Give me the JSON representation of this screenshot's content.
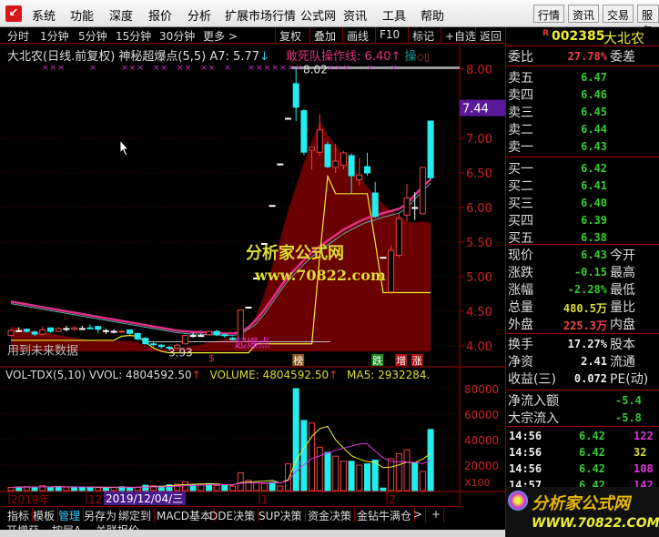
{
  "menu": {
    "items": [
      "系统",
      "功能",
      "深度",
      "报价",
      "分析",
      "扩展市场行情",
      "公式网",
      "资讯",
      "工具",
      "帮助"
    ],
    "buttons": [
      "行情",
      "资讯",
      "交易",
      "服务"
    ]
  },
  "toolbar": {
    "periods": [
      "分时",
      "1分钟",
      "5分钟",
      "15分钟",
      "30分钟",
      "更多 >"
    ],
    "buttons": [
      "复权",
      "叠加",
      "画线",
      "F10",
      "标记",
      "+自选",
      "返回"
    ]
  },
  "chart_title": {
    "name": "大北农(日线.前复权) 神秘超爆点(5,5) A7: 5.77",
    "a7_arrow": "↓",
    "line2": "敢死队操作线: 6.40",
    "line2_arrow": "↑",
    "cao": "操"
  },
  "chart_data": [
    {
      "type": "candlestick",
      "title": "大北农(日线.前复权)",
      "yaxis_ticks": [
        "8.00",
        "7.00",
        "6.50",
        "6.00",
        "5.50",
        "5.00",
        "4.50",
        "4.00"
      ],
      "ylim": [
        3.8,
        8.1
      ],
      "highlight_price": "7.44",
      "high_label": "8.02",
      "low_label": "3.93",
      "candles": [
        [
          4.15,
          4.22,
          4.24,
          4.14
        ],
        [
          4.22,
          4.22,
          4.27,
          4.2
        ],
        [
          4.24,
          4.21,
          4.25,
          4.19
        ],
        [
          4.2,
          4.17,
          4.22,
          4.14
        ],
        [
          4.17,
          4.23,
          4.28,
          4.15
        ],
        [
          4.26,
          4.21,
          4.27,
          4.19
        ],
        [
          4.21,
          4.25,
          4.27,
          4.2
        ],
        [
          4.25,
          4.25,
          4.29,
          4.21
        ],
        [
          4.24,
          4.26,
          4.28,
          4.22
        ],
        [
          4.25,
          4.25,
          4.29,
          4.23
        ],
        [
          4.26,
          4.25,
          4.31,
          4.24
        ],
        [
          4.28,
          4.24,
          4.29,
          4.18
        ],
        [
          4.22,
          4.22,
          4.25,
          4.17
        ],
        [
          4.21,
          4.21,
          4.24,
          4.18
        ],
        [
          4.2,
          4.21,
          4.23,
          4.19
        ],
        [
          4.23,
          4.18,
          4.24,
          4.16
        ],
        [
          4.18,
          4.1,
          4.19,
          4.08
        ],
        [
          4.11,
          4.03,
          4.13,
          4.02
        ],
        [
          4.03,
          4.02,
          4.06,
          3.99
        ],
        [
          4.01,
          3.99,
          4.03,
          3.96
        ],
        [
          3.98,
          3.97,
          4.0,
          3.93
        ],
        [
          3.97,
          4.01,
          4.03,
          3.95
        ],
        [
          4.03,
          4.15,
          4.16,
          4.02
        ],
        [
          4.15,
          4.15,
          4.19,
          4.12
        ],
        [
          4.15,
          4.15,
          4.18,
          4.13
        ],
        [
          4.16,
          4.21,
          4.22,
          4.15
        ],
        [
          4.21,
          4.16,
          4.23,
          4.14
        ],
        [
          4.16,
          4.15,
          4.18,
          4.12
        ],
        [
          4.11,
          4.09,
          4.13,
          4.08
        ],
        [
          4.06,
          4.52,
          4.52,
          4.05
        ],
        [
          4.56,
          4.56,
          4.56,
          4.56
        ],
        [
          4.98,
          4.98,
          4.98,
          4.98
        ],
        [
          5.48,
          5.48,
          5.48,
          5.48
        ],
        [
          6.03,
          6.03,
          6.03,
          6.03
        ],
        [
          6.63,
          6.63,
          6.63,
          6.63
        ],
        [
          7.29,
          7.29,
          7.29,
          7.29
        ],
        [
          7.79,
          7.45,
          8.02,
          7.25
        ],
        [
          7.4,
          6.8,
          7.42,
          6.76
        ],
        [
          6.83,
          6.87,
          6.87,
          6.55
        ],
        [
          6.8,
          7.12,
          7.35,
          6.75
        ],
        [
          6.91,
          6.59,
          6.95,
          6.57
        ],
        [
          6.58,
          6.67,
          6.92,
          6.5
        ],
        [
          6.61,
          6.79,
          6.82,
          6.55
        ],
        [
          6.75,
          6.46,
          6.78,
          6.2
        ],
        [
          6.4,
          6.47,
          6.72,
          6.32
        ],
        [
          6.59,
          6.5,
          6.79,
          6.46
        ],
        [
          6.21,
          5.87,
          6.37,
          5.85
        ],
        [
          5.28,
          5.28,
          5.28,
          5.28
        ],
        [
          4.78,
          5.38,
          5.45,
          4.75
        ],
        [
          5.31,
          5.84,
          5.92,
          5.28
        ],
        [
          5.89,
          6.14,
          6.34,
          5.8
        ],
        [
          6.0,
          6.0,
          6.22,
          5.82
        ],
        [
          5.91,
          6.58,
          6.58,
          5.9
        ],
        [
          7.25,
          6.43,
          7.25,
          6.4
        ]
      ],
      "ma": [
        4.64,
        4.62,
        4.6,
        4.58,
        4.56,
        4.54,
        4.52,
        4.5,
        4.48,
        4.46,
        4.44,
        4.42,
        4.4,
        4.38,
        4.36,
        4.34,
        4.32,
        4.3,
        4.28,
        4.26,
        4.24,
        4.22,
        4.21,
        4.2,
        4.2,
        4.19,
        4.19,
        4.18,
        4.18,
        4.2,
        4.27,
        4.38,
        4.52,
        4.68,
        4.85,
        5.0,
        5.12,
        5.24,
        5.35,
        5.44,
        5.52,
        5.6,
        5.68,
        5.74,
        5.8,
        5.85,
        5.88,
        5.92,
        5.95,
        5.98,
        6.05,
        6.18,
        6.3,
        6.41
      ],
      "signal_line": [
        4.08,
        4.08,
        4.08,
        4.08,
        4.08,
        4.08,
        4.08,
        4.08,
        4.08,
        4.08,
        4.08,
        4.08,
        4.08,
        4.08,
        4.14,
        4.15,
        4.14,
        4.05,
        3.97,
        3.92,
        3.9,
        3.9,
        3.9,
        3.9,
        3.9,
        3.9,
        3.9,
        3.9,
        3.9,
        3.9,
        3.9,
        4.03,
        4.03,
        4.03,
        4.03,
        4.03,
        4.03,
        4.03,
        4.03,
        5.3,
        6.45,
        6.2,
        6.2,
        6.2,
        6.2,
        6.2,
        5.5,
        4.77,
        4.77,
        4.77,
        4.77,
        4.77,
        4.77,
        4.77
      ],
      "band_top": [
        4.28,
        4.26,
        4.24,
        4.22,
        4.2,
        4.18,
        4.16,
        4.14,
        4.12,
        4.1,
        4.08,
        4.07,
        4.07,
        4.07,
        4.07,
        4.07,
        4.05,
        4.0,
        3.97,
        3.95,
        3.95,
        3.96,
        3.98,
        4.0,
        4.02,
        4.05,
        4.08,
        4.1,
        4.12,
        4.15,
        4.25,
        4.45,
        4.75,
        5.15,
        5.55,
        5.95,
        6.3,
        6.65,
        6.95,
        7.25,
        7.05,
        6.9,
        6.75,
        6.6,
        6.45,
        6.3,
        6.18,
        6.05,
        5.95,
        5.88,
        5.8,
        5.78,
        5.8,
        5.78
      ],
      "markers": [
        {
          "index": 36,
          "label": "榜",
          "color": "#8a5a20"
        },
        {
          "index": 46,
          "label": "跌",
          "color": "#1a8a1a"
        },
        {
          "index": 49,
          "label": "增",
          "color": "#b01010"
        },
        {
          "index": 51,
          "label": "涨",
          "color": "#b01010"
        }
      ],
      "annotations": [
        "起爆点",
        "用到未来数据",
        "$"
      ]
    },
    {
      "type": "bar",
      "title": "VOL-TDX(5,10)",
      "labels": {
        "vvol": "VVOL: 4804592.50",
        "volume": "VOLUME: 4804592.50",
        "ma5": "MA5: 2932284."
      },
      "yaxis_ticks": [
        "80000",
        "60000",
        "40000",
        "20000"
      ],
      "unit": "X100",
      "ylim": [
        0,
        90000
      ],
      "volumes": [
        2500,
        2800,
        3000,
        2600,
        3800,
        2500,
        3200,
        2700,
        2600,
        2800,
        2600,
        2400,
        2300,
        2500,
        3000,
        2400,
        2600,
        4200,
        3800,
        3500,
        4500,
        5000,
        7000,
        4800,
        4500,
        5500,
        4000,
        4200,
        3500,
        14000,
        8000,
        6000,
        5500,
        6500,
        3500,
        21000,
        80000,
        55000,
        53000,
        34000,
        30000,
        27000,
        23000,
        23000,
        20000,
        21000,
        24000,
        2000,
        25000,
        29000,
        32000,
        22000,
        15000,
        48000
      ],
      "up": [
        1,
        0,
        1,
        0,
        1,
        0,
        0,
        1,
        0,
        0,
        0,
        1,
        0,
        1,
        0,
        0,
        1,
        0,
        1,
        0,
        0,
        1,
        1,
        0,
        1,
        0,
        1,
        0,
        1,
        1,
        1,
        1,
        1,
        0,
        1,
        1,
        0,
        0,
        1,
        1,
        0,
        1,
        1,
        0,
        1,
        0,
        0,
        0,
        1,
        1,
        1,
        0,
        1,
        0
      ]
    },
    {
      "type": "axis",
      "x_labels": [
        "2019年",
        "12",
        "1",
        "2"
      ],
      "cursor_date": "2019/12/04/三"
    }
  ],
  "watermark": {
    "title": "分析家公式网",
    "url": "www.70822.com"
  },
  "quote": {
    "code": "002385",
    "name": "大北农",
    "r": "R",
    "weibi": {
      "label": "委比",
      "value": "27.78%",
      "right": "委差"
    },
    "asks": [
      {
        "label": "卖五",
        "price": "6.47"
      },
      {
        "label": "卖四",
        "price": "6.46"
      },
      {
        "label": "卖三",
        "price": "6.45"
      },
      {
        "label": "卖二",
        "price": "6.44"
      },
      {
        "label": "卖一",
        "price": "6.43"
      }
    ],
    "bids": [
      {
        "label": "买一",
        "price": "6.42"
      },
      {
        "label": "买二",
        "price": "6.41"
      },
      {
        "label": "买三",
        "price": "6.40"
      },
      {
        "label": "买四",
        "price": "6.39"
      },
      {
        "label": "买五",
        "price": "6.38"
      }
    ],
    "stats": [
      {
        "label": "现价",
        "value": "6.43",
        "right": "今开",
        "color": "#3c3"
      },
      {
        "label": "涨跌",
        "value": "-0.15",
        "right": "最高",
        "color": "#3c3"
      },
      {
        "label": "涨幅",
        "value": "-2.28%",
        "right": "最低",
        "color": "#3c3"
      },
      {
        "label": "总量",
        "value": "480.5万",
        "right": "量比",
        "color": "#dd3"
      },
      {
        "label": "外盘",
        "value": "225.3万",
        "right": "内盘",
        "color": "#e44"
      }
    ],
    "fund": [
      {
        "label": "换手",
        "value": "17.27%",
        "right": "股本"
      },
      {
        "label": "净资",
        "value": "2.41",
        "right": "流通"
      },
      {
        "label": "收益(三)",
        "value": "0.072",
        "right": "PE(动)"
      }
    ],
    "flows": [
      {
        "label": "净流入额",
        "value": "-5.4"
      },
      {
        "label": "大宗流入",
        "value": "-5.8"
      }
    ],
    "ticks": [
      {
        "time": "14:56",
        "price": "6.42",
        "vol": "122",
        "color": "#d3d"
      },
      {
        "time": "14:56",
        "price": "6.42",
        "vol": "32",
        "color": "#dd3"
      },
      {
        "time": "14:56",
        "price": "6.42",
        "vol": "108",
        "color": "#d3d"
      },
      {
        "time": "14:57",
        "price": "6.42",
        "vol": "142",
        "color": "#d3d"
      }
    ]
  },
  "banner": {
    "title": "分析家公式网",
    "url": "WWW.70822.COM"
  },
  "tabs": {
    "items": [
      "指标",
      "模板",
      "管理",
      "另存为",
      "绑定到",
      "MACD基本",
      "DDE决策",
      "SUP决策",
      "资金决策",
      "金钻牛满仓",
      ">",
      "+"
    ],
    "row2": [
      "开增获",
      "按层A",
      "关联报价"
    ]
  }
}
